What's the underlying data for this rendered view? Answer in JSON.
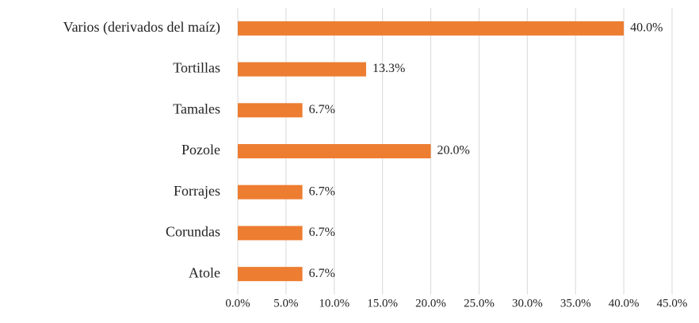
{
  "chart_data": {
    "type": "bar",
    "orientation": "horizontal",
    "categories": [
      "Varios (derivados del maíz)",
      "Tortillas",
      "Tamales",
      "Pozole",
      "Forrajes",
      "Corundas",
      "Atole"
    ],
    "values": [
      40,
      13.3,
      6.7,
      20,
      6.7,
      6.7,
      6.7
    ],
    "value_labels": [
      "40.0%",
      "13.3%",
      "6.7%",
      "20.0%",
      "6.7%",
      "6.7%",
      "6.7%"
    ],
    "color": "#ed7d31",
    "xlim": [
      0,
      45
    ],
    "xticks": [
      {
        "value": 0,
        "label": "0.0%"
      },
      {
        "value": 5,
        "label": "5.0%"
      },
      {
        "value": 10,
        "label": "10.0%"
      },
      {
        "value": 15,
        "label": "15.0%"
      },
      {
        "value": 20,
        "label": "20.0%"
      },
      {
        "value": 25,
        "label": "25.0%"
      },
      {
        "value": 30,
        "label": "30.0%"
      },
      {
        "value": 35,
        "label": "35.0%"
      },
      {
        "value": 40,
        "label": "40.0%"
      },
      {
        "value": 45,
        "label": "45.0%"
      }
    ],
    "grid": true
  }
}
